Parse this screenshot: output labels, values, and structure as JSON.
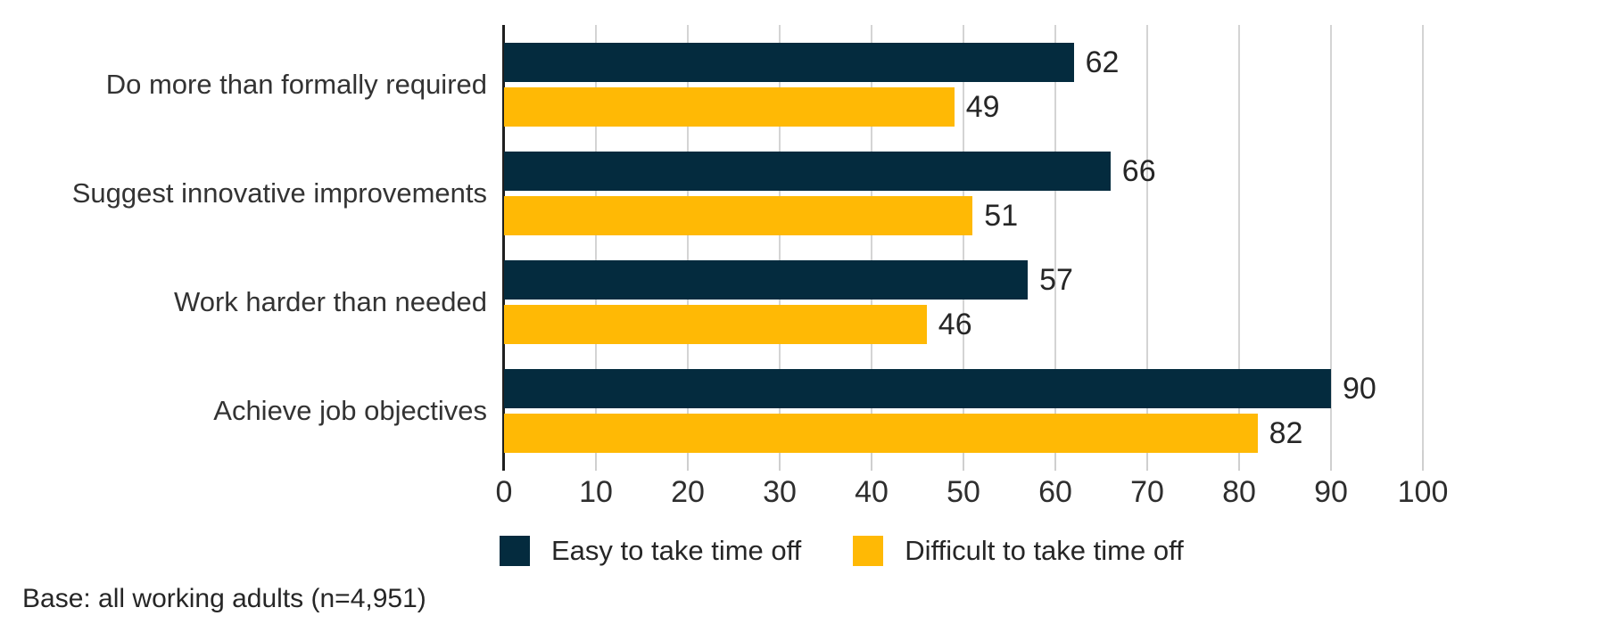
{
  "chart_data": {
    "type": "bar",
    "orientation": "horizontal",
    "title": "",
    "categories": [
      "Do more than formally required",
      "Suggest innovative improvements",
      "Work harder than needed",
      "Achieve job objectives"
    ],
    "series": [
      {
        "name": "Easy to take time off",
        "color": "#042b3e",
        "values": [
          62,
          66,
          57,
          90
        ]
      },
      {
        "name": "Difficult to take time off",
        "color": "#ffb905",
        "values": [
          49,
          51,
          46,
          82
        ]
      }
    ],
    "xlim": [
      0,
      100
    ],
    "x_ticks": [
      0,
      10,
      20,
      30,
      40,
      50,
      60,
      70,
      80,
      90,
      100
    ],
    "grid": true,
    "value_labels": true,
    "legend_position": "bottom",
    "footnote": "Base: all working adults (n=4,951)"
  },
  "style": {
    "gridline_color": "#d4d4d4",
    "axis_line_color": "#1f1f1f",
    "tick_stub_color": "#cfcfcf",
    "label_color": "#333333",
    "value_label_color": "#262626"
  }
}
